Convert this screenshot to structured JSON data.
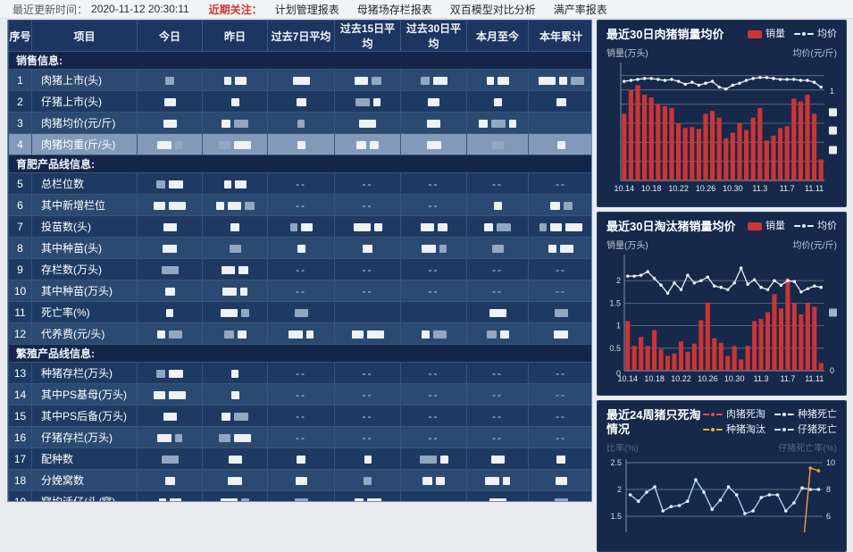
{
  "topbar": {
    "updated_label": "最近更新时间：",
    "updated_time": "2020-11-12 20:30:11",
    "focus_label": "近期关注：",
    "menu": [
      "计划管理报表",
      "母猪场存栏报表",
      "双百模型对比分析",
      "满产率报表"
    ]
  },
  "table": {
    "headers": [
      "序号",
      "项目",
      "今日",
      "昨日",
      "过去7日平均",
      "过去15日平均",
      "过去30日平均",
      "本月至今",
      "本年累计"
    ],
    "selected_row": "4",
    "sections": [
      {
        "title": "销售信息:",
        "rows": [
          {
            "num": "1",
            "label": "肉猪上市(头)",
            "cells": [
              "r1",
              "r2",
              "r1",
              "r2",
              "r2",
              "r2",
              "r3"
            ]
          },
          {
            "num": "2",
            "label": "仔猪上市(头)",
            "cells": [
              "r1",
              "r1",
              "r1",
              "r2",
              "r1",
              "r1",
              "r1"
            ]
          },
          {
            "num": "3",
            "label": "肉猪均价(元/斤)",
            "cells": [
              "r1",
              "r2",
              "r1",
              "r1",
              "r1",
              "r3",
              ""
            ]
          },
          {
            "num": "4",
            "label": "肉猪均重(斤/头)",
            "cells": [
              "r2",
              "r2",
              "r1",
              "r2",
              "r1",
              "r1",
              "r1"
            ]
          }
        ]
      },
      {
        "title": "育肥产品线信息:",
        "rows": [
          {
            "num": "5",
            "label": "总栏位数",
            "cells": [
              "r2",
              "r2",
              "--",
              "--",
              "--",
              "--",
              "--"
            ]
          },
          {
            "num": "6",
            "label": "其中新增栏位",
            "cells": [
              "r2",
              "r3",
              "--",
              "--",
              "--",
              "r1",
              "r2"
            ]
          },
          {
            "num": "7",
            "label": "投苗数(头)",
            "cells": [
              "r1",
              "r1",
              "r2",
              "r2",
              "r2",
              "r2",
              "r3"
            ]
          },
          {
            "num": "8",
            "label": "其中种苗(头)",
            "cells": [
              "r1",
              "r1",
              "r1",
              "r1",
              "r2",
              "r1",
              "r2"
            ]
          },
          {
            "num": "9",
            "label": "存栏数(万头)",
            "cells": [
              "r1",
              "r2",
              "--",
              "--",
              "--",
              "--",
              "--"
            ]
          },
          {
            "num": "10",
            "label": "其中种苗(万头)",
            "cells": [
              "r1",
              "r2",
              "--",
              "--",
              "--",
              "--",
              "--"
            ]
          },
          {
            "num": "11",
            "label": "死亡率(%)",
            "cells": [
              "r1",
              "r2",
              "r1",
              "",
              "",
              "r1",
              "r1"
            ]
          },
          {
            "num": "12",
            "label": "代养费(元/头)",
            "cells": [
              "r2",
              "r2",
              "r2",
              "r2",
              "r2",
              "r2",
              "r1"
            ]
          }
        ]
      },
      {
        "title": "繁殖产品线信息:",
        "rows": [
          {
            "num": "13",
            "label": "种猪存栏(万头)",
            "cells": [
              "r2",
              "r1",
              "--",
              "--",
              "--",
              "--",
              "--"
            ]
          },
          {
            "num": "14",
            "label": "其中PS基母(万头)",
            "cells": [
              "r2",
              "r1",
              "--",
              "--",
              "--",
              "--",
              "--"
            ]
          },
          {
            "num": "15",
            "label": "其中PS后备(万头)",
            "cells": [
              "r1",
              "r2",
              "--",
              "--",
              "--",
              "--",
              "--"
            ]
          },
          {
            "num": "16",
            "label": "仔猪存栏(万头)",
            "cells": [
              "r2",
              "r2",
              "--",
              "--",
              "--",
              "--",
              "--"
            ]
          },
          {
            "num": "17",
            "label": "配种数",
            "cells": [
              "r1",
              "r1",
              "r1",
              "r1",
              "r2",
              "r1",
              "r1"
            ]
          },
          {
            "num": "18",
            "label": "分娩窝数",
            "cells": [
              "r1",
              "r1",
              "r1",
              "r1",
              "r2",
              "r2",
              "r1"
            ]
          },
          {
            "num": "19",
            "label": "窝均活仔(头/窝)",
            "cells": [
              "r2",
              "r2",
              "r1",
              "r2",
              "",
              "r1",
              "r1"
            ]
          }
        ]
      }
    ]
  },
  "chart_data": [
    {
      "type": "bar+line",
      "title": "最近30日肉猪销量均价",
      "ylabel_left": "销量(万头)",
      "ylabel_right": "均价(元/斤)",
      "legend": [
        {
          "label": "销量",
          "type": "bar",
          "color": "#cd3434"
        },
        {
          "label": "均价",
          "type": "line",
          "color": "#e6eef8"
        }
      ],
      "x_tick_labels": [
        "10.14",
        "10.18",
        "10.22",
        "10.26",
        "10.30",
        "11.3",
        "11.7",
        "11.11"
      ],
      "note_axis": "纵轴数值已打码，右轴仅可见刻度 1",
      "bars_relative": [
        0.7,
        0.95,
        1.0,
        0.9,
        0.87,
        0.8,
        0.78,
        0.76,
        0.6,
        0.55,
        0.56,
        0.54,
        0.7,
        0.73,
        0.66,
        0.44,
        0.5,
        0.6,
        0.53,
        0.66,
        0.76,
        0.42,
        0.47,
        0.55,
        0.57,
        0.86,
        0.83,
        0.9,
        0.7,
        0.22
      ],
      "line_relative": [
        1.04,
        1.05,
        1.06,
        1.07,
        1.07,
        1.06,
        1.05,
        1.06,
        1.04,
        1.01,
        1.03,
        1.0,
        1.02,
        1.04,
        0.98,
        0.96,
        1.0,
        1.02,
        1.05,
        1.07,
        1.08,
        1.08,
        1.07,
        1.06,
        1.06,
        1.06,
        1.05,
        1.05,
        1.03,
        0.98
      ],
      "right_axis_visible_label": "1",
      "colors": {
        "bar": "#cd3434",
        "line": "#dce9f7",
        "grid": "#5f7291",
        "axis_text": "#d7dfeb"
      }
    },
    {
      "type": "bar+line",
      "title": "最近30日淘汰猪销量均价",
      "ylabel_left": "销量(万头)",
      "ylabel_right": "均价(元/斤)",
      "legend": [
        {
          "label": "销量",
          "type": "bar",
          "color": "#cd3434"
        },
        {
          "label": "均价",
          "type": "line",
          "color": "#e6eef8"
        }
      ],
      "x_tick_labels": [
        "10.14",
        "10.18",
        "10.22",
        "10.26",
        "10.30",
        "11.3",
        "11.7",
        "11.11"
      ],
      "y_ticks_left": [
        "0",
        "0.5",
        "1",
        "1.5",
        "2"
      ],
      "right_axis_visible_label": "0",
      "bars": [
        1.1,
        0.55,
        0.75,
        0.55,
        0.9,
        0.48,
        0.33,
        0.38,
        0.65,
        0.42,
        0.6,
        1.12,
        1.5,
        0.72,
        0.62,
        0.33,
        0.55,
        0.25,
        0.55,
        1.1,
        1.15,
        1.3,
        1.7,
        1.38,
        2.05,
        1.5,
        1.25,
        1.5,
        1.42,
        0.17
      ],
      "line": [
        2.1,
        2.1,
        2.12,
        2.2,
        2.05,
        1.9,
        1.72,
        1.95,
        1.8,
        2.12,
        1.95,
        2.0,
        2.08,
        1.88,
        1.85,
        1.8,
        1.95,
        2.28,
        1.92,
        2.02,
        1.85,
        1.8,
        2.0,
        1.9,
        2.0,
        1.98,
        1.75,
        1.82,
        1.88,
        1.85
      ],
      "ylim_left": [
        0,
        2.5
      ],
      "colors": {
        "bar": "#cd3434",
        "line": "#e8f1fa",
        "grid": "#5f7291",
        "axis_text": "#d7dfeb"
      }
    },
    {
      "type": "line",
      "title": "最近24周猪只死淘情况",
      "ylabel_left": "比率(%)",
      "ylabel_right": "仔猪死亡率(%)",
      "legend": [
        {
          "label": "肉猪死淘",
          "type": "line",
          "color": "#e24c4c"
        },
        {
          "label": "种猪死亡",
          "type": "line",
          "color": "#f4f7fb"
        },
        {
          "label": "种猪淘汰",
          "type": "line",
          "color": "#f0b429"
        },
        {
          "label": "仔猪死亡",
          "type": "line",
          "color": "#d7ecff"
        }
      ],
      "y_ticks_left": [
        "1.5",
        "2",
        "2.5"
      ],
      "y_ticks_right": [
        "6",
        "8",
        "10"
      ],
      "series": [
        {
          "name": "仔猪死亡",
          "axis": "left",
          "color": "#a8cdf0",
          "values": [
            1.9,
            1.78,
            1.95,
            2.05,
            1.6,
            1.68,
            1.7,
            1.78,
            2.18,
            1.95,
            1.63,
            1.8,
            2.05,
            1.9,
            1.55,
            1.6,
            1.85,
            1.9,
            1.9,
            1.6,
            1.75,
            2.03,
            2.0,
            2.0
          ]
        },
        {
          "name": "种猪淘汰",
          "axis": "right",
          "color": "#f0a03c",
          "values": [
            null,
            null,
            null,
            null,
            null,
            null,
            null,
            null,
            null,
            null,
            null,
            null,
            null,
            null,
            null,
            null,
            null,
            null,
            null,
            null,
            4.0,
            3.0,
            9.6,
            9.4
          ]
        }
      ],
      "ylim_left_visible": [
        1.4,
        2.55
      ],
      "ylim_right_visible": [
        5.6,
        10.2
      ],
      "colors": {
        "grid": "#5f7291",
        "axis_text": "#d7dfeb"
      }
    }
  ]
}
